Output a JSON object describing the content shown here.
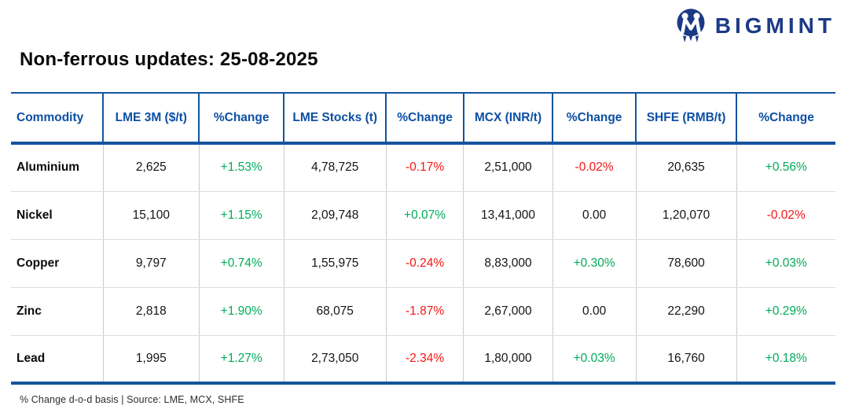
{
  "logo": {
    "text": "BIGMINT",
    "icon": "bigmint-logo-icon"
  },
  "title": "Non-ferrous updates: 25-08-2025",
  "footer_note": "% Change d-o-d basis | Source: LME, MCX, SHFE",
  "colors": {
    "positive": "#00ab5b",
    "negative": "#f51515",
    "header_text": "#0d4fa4",
    "table_border": "#14549e",
    "logo_navy": "#1b3a86"
  },
  "chart_data": {
    "type": "table",
    "title": "Non-ferrous updates: 25-08-2025",
    "columns": [
      "Commodity",
      "LME 3M ($/t)",
      "%Change",
      "LME Stocks (t)",
      "%Change",
      "MCX (INR/t)",
      "%Change",
      "SHFE (RMB/t)",
      "%Change"
    ],
    "rows": [
      [
        "Aluminium",
        "2,625",
        "+1.53%",
        "4,78,725",
        "-0.17%",
        "2,51,000",
        "-0.02%",
        "20,635",
        "+0.56%"
      ],
      [
        "Nickel",
        "15,100",
        "+1.15%",
        "2,09,748",
        "+0.07%",
        "13,41,000",
        "0.00",
        "1,20,070",
        "-0.02%"
      ],
      [
        "Copper",
        "9,797",
        "+0.74%",
        "1,55,975",
        "-0.24%",
        "8,83,000",
        "+0.30%",
        "78,600",
        "+0.03%"
      ],
      [
        "Zinc",
        "2,818",
        "+1.90%",
        "68,075",
        "-1.87%",
        "2,67,000",
        "0.00",
        "22,290",
        "+0.29%"
      ],
      [
        "Lead",
        "1,995",
        "+1.27%",
        "2,73,050",
        "-2.34%",
        "1,80,000",
        "+0.03%",
        "16,760",
        "+0.18%"
      ]
    ],
    "tones": [
      [
        "name",
        "plain",
        "pos",
        "plain",
        "neg",
        "plain",
        "neg",
        "plain",
        "pos"
      ],
      [
        "name",
        "plain",
        "pos",
        "plain",
        "pos",
        "plain",
        "flat",
        "plain",
        "neg"
      ],
      [
        "name",
        "plain",
        "pos",
        "plain",
        "neg",
        "plain",
        "pos",
        "plain",
        "pos"
      ],
      [
        "name",
        "plain",
        "pos",
        "plain",
        "neg",
        "plain",
        "flat",
        "plain",
        "pos"
      ],
      [
        "name",
        "plain",
        "pos",
        "plain",
        "neg",
        "plain",
        "pos",
        "plain",
        "pos"
      ]
    ],
    "footnote": "% Change d-o-d basis | Source: LME, MCX, SHFE",
    "legend": "none",
    "grid": "table-lines"
  }
}
